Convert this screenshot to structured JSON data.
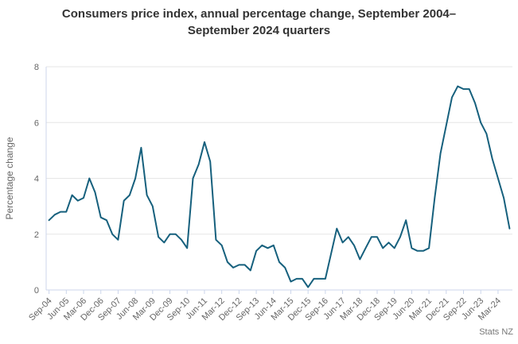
{
  "title": "Consumers price index, annual percentage change, September 2004–September 2024 quarters",
  "credit": "Stats NZ",
  "chart_data": {
    "type": "line",
    "title": "Consumers price index, annual percentage change, September 2004–September 2024 quarters",
    "xlabel": "",
    "ylabel": "Percentage change",
    "ylim": [
      0,
      8
    ],
    "yticks": [
      0,
      2,
      4,
      6,
      8
    ],
    "grid": true,
    "legend_position": "none",
    "x_label_every": 3,
    "x_label_rotation": -45,
    "series_name": "CPI annual percentage change",
    "categories": [
      "Sep-04",
      "Dec-04",
      "Mar-05",
      "Jun-05",
      "Sep-05",
      "Dec-05",
      "Mar-06",
      "Jun-06",
      "Sep-06",
      "Dec-06",
      "Mar-07",
      "Jun-07",
      "Sep-07",
      "Dec-07",
      "Mar-08",
      "Jun-08",
      "Sep-08",
      "Dec-08",
      "Mar-09",
      "Jun-09",
      "Sep-09",
      "Dec-09",
      "Mar-10",
      "Jun-10",
      "Sep-10",
      "Dec-10",
      "Mar-11",
      "Jun-11",
      "Sep-11",
      "Dec-11",
      "Mar-12",
      "Jun-12",
      "Sep-12",
      "Dec-12",
      "Mar-13",
      "Jun-13",
      "Sep-13",
      "Dec-13",
      "Mar-14",
      "Jun-14",
      "Sep-14",
      "Dec-14",
      "Mar-15",
      "Jun-15",
      "Sep-15",
      "Dec-15",
      "Mar-16",
      "Jun-16",
      "Sep-16",
      "Dec-16",
      "Mar-17",
      "Jun-17",
      "Sep-17",
      "Dec-17",
      "Mar-18",
      "Jun-18",
      "Sep-18",
      "Dec-18",
      "Mar-19",
      "Jun-19",
      "Sep-19",
      "Dec-19",
      "Mar-20",
      "Jun-20",
      "Sep-20",
      "Dec-20",
      "Mar-21",
      "Jun-21",
      "Sep-21",
      "Dec-21",
      "Mar-22",
      "Jun-22",
      "Sep-22",
      "Dec-22",
      "Mar-23",
      "Jun-23",
      "Sep-23",
      "Dec-23",
      "Mar-24",
      "Jun-24",
      "Sep-24"
    ],
    "values": [
      2.5,
      2.7,
      2.8,
      2.8,
      3.4,
      3.2,
      3.3,
      4.0,
      3.5,
      2.6,
      2.5,
      2.0,
      1.8,
      3.2,
      3.4,
      4.0,
      5.1,
      3.4,
      3.0,
      1.9,
      1.7,
      2.0,
      2.0,
      1.8,
      1.5,
      4.0,
      4.5,
      5.3,
      4.6,
      1.8,
      1.6,
      1.0,
      0.8,
      0.9,
      0.9,
      0.7,
      1.4,
      1.6,
      1.5,
      1.6,
      1.0,
      0.8,
      0.3,
      0.4,
      0.4,
      0.1,
      0.4,
      0.4,
      0.4,
      1.3,
      2.2,
      1.7,
      1.9,
      1.6,
      1.1,
      1.5,
      1.9,
      1.9,
      1.5,
      1.7,
      1.5,
      1.9,
      2.5,
      1.5,
      1.4,
      1.4,
      1.5,
      3.3,
      4.9,
      5.9,
      6.9,
      7.3,
      7.2,
      7.2,
      6.7,
      6.0,
      5.6,
      4.7,
      4.0,
      3.3,
      2.2
    ],
    "colors": {
      "line": "#16607d",
      "grid": "#e6e6e6",
      "axis": "#ccd6eb",
      "labels": "#666666",
      "title": "#333333",
      "credit": "#777777",
      "background": "#ffffff"
    }
  }
}
